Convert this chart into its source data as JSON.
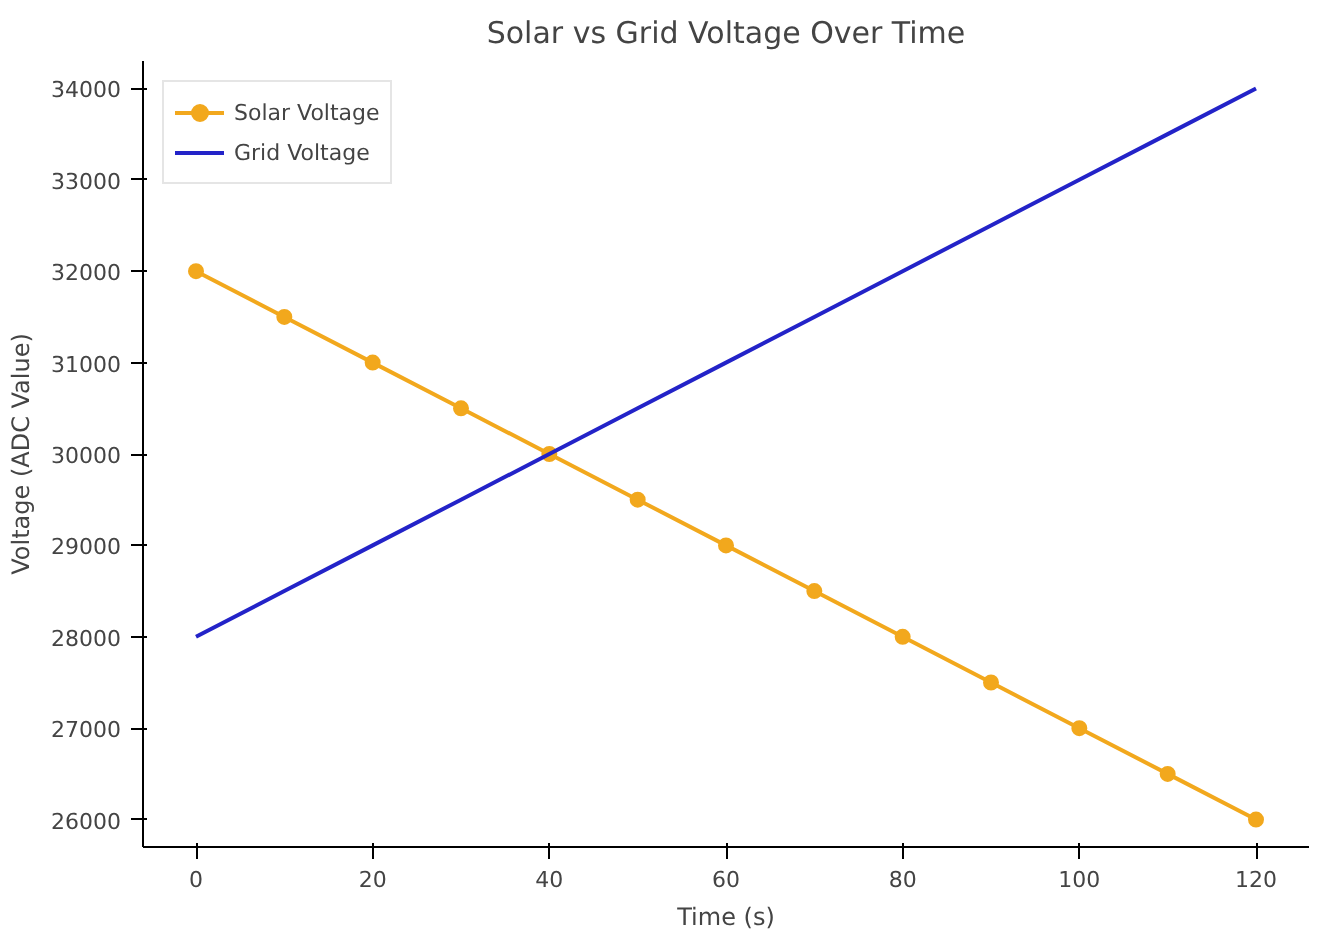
{
  "chart_data": {
    "type": "line",
    "title": "Solar vs Grid Voltage Over Time",
    "xlabel": "Time (s)",
    "ylabel": "Voltage (ADC Value)",
    "x": [
      0,
      10,
      20,
      30,
      40,
      50,
      60,
      70,
      80,
      90,
      100,
      110,
      120
    ],
    "series": [
      {
        "name": "Solar Voltage",
        "color": "#f2a81d",
        "marker": "circle",
        "values": [
          32000,
          31500,
          31000,
          30500,
          30000,
          29500,
          29000,
          28500,
          28000,
          27500,
          27000,
          26500,
          26000
        ]
      },
      {
        "name": "Grid Voltage",
        "color": "#2323c8",
        "marker": "none",
        "values": [
          28000,
          28500,
          29000,
          29500,
          30000,
          30500,
          31000,
          31500,
          32000,
          32500,
          33000,
          33500,
          34000
        ]
      }
    ],
    "xlim": [
      -6,
      126
    ],
    "ylim": [
      25700,
      34300
    ],
    "xticks": [
      0,
      20,
      40,
      60,
      80,
      100,
      120
    ],
    "yticks": [
      26000,
      27000,
      28000,
      29000,
      30000,
      31000,
      32000,
      33000,
      34000
    ],
    "grid": false,
    "legend": "top left",
    "line_style": "solid"
  }
}
